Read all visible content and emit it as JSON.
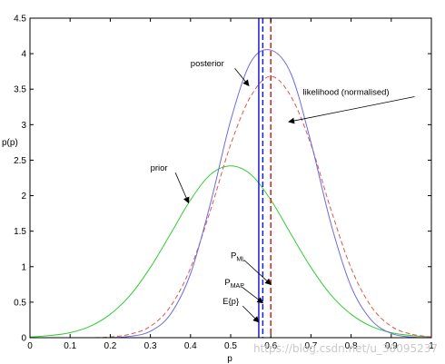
{
  "chart_data": {
    "type": "line",
    "title": "",
    "xlabel": "p",
    "ylabel": "p(p)",
    "xlim": [
      0,
      1
    ],
    "ylim": [
      0,
      4.5
    ],
    "x_ticks": [
      "0",
      "0.1",
      "0.2",
      "0.3",
      "0.4",
      "0.5",
      "0.6",
      "0.7",
      "0.8",
      "0.9",
      "1"
    ],
    "y_ticks": [
      "0",
      "0.5",
      "1",
      "1.5",
      "2",
      "2.5",
      "3",
      "3.5",
      "4",
      "4.5"
    ],
    "series": [
      {
        "name": "prior",
        "color": "#33cc33",
        "dash": "solid",
        "x": [
          0,
          0.05,
          0.1,
          0.15,
          0.2,
          0.25,
          0.3,
          0.35,
          0.4,
          0.45,
          0.5,
          0.55,
          0.6,
          0.65,
          0.7,
          0.75,
          0.8,
          0.85,
          0.9,
          0.95,
          1
        ],
        "y": [
          0.01,
          0.03,
          0.07,
          0.16,
          0.33,
          0.6,
          0.99,
          1.46,
          1.94,
          2.3,
          2.42,
          2.3,
          1.94,
          1.46,
          0.99,
          0.6,
          0.33,
          0.16,
          0.07,
          0.03,
          0.01
        ]
      },
      {
        "name": "likelihood (normalised)",
        "color": "#e0554f",
        "dash": "dashed",
        "x": [
          0,
          0.05,
          0.1,
          0.15,
          0.2,
          0.25,
          0.3,
          0.35,
          0.4,
          0.45,
          0.5,
          0.55,
          0.6,
          0.65,
          0.7,
          0.75,
          0.8,
          0.85,
          0.9,
          0.95,
          1
        ],
        "y": [
          0,
          0,
          0,
          0,
          0.01,
          0.05,
          0.16,
          0.44,
          0.98,
          1.8,
          2.72,
          3.4,
          3.68,
          3.4,
          2.72,
          1.8,
          0.98,
          0.44,
          0.16,
          0.05,
          0.01
        ]
      },
      {
        "name": "posterior",
        "color": "#6b6bdc",
        "dash": "solid",
        "x": [
          0,
          0.05,
          0.1,
          0.15,
          0.2,
          0.25,
          0.3,
          0.35,
          0.4,
          0.45,
          0.5,
          0.55,
          0.6,
          0.65,
          0.7,
          0.75,
          0.8,
          0.85,
          0.9,
          0.95,
          1
        ],
        "y": [
          0,
          0,
          0,
          0,
          0,
          0.02,
          0.09,
          0.33,
          0.9,
          1.9,
          3.06,
          3.88,
          4.05,
          3.72,
          2.75,
          1.6,
          0.72,
          0.25,
          0.06,
          0.01,
          0
        ]
      }
    ],
    "vertical_lines": [
      {
        "label": "E{p}",
        "x": 0.57,
        "color": "#1c1cd6",
        "dash": "solid"
      },
      {
        "label": "P_MAP",
        "x": 0.58,
        "color": "#1c1cd6",
        "dash": "dashed"
      },
      {
        "label": "P_ML",
        "x": 0.6,
        "color": "#d42020",
        "dash": "dashed"
      }
    ],
    "annotations": [
      {
        "text": "posterior",
        "x": 0.4,
        "y": 3.82,
        "arrow_to": [
          0.545,
          3.55
        ]
      },
      {
        "text": "likelihood (normalised)",
        "x": 0.68,
        "y": 3.42,
        "arrow_to": [
          0.645,
          3.04
        ]
      },
      {
        "text": "prior",
        "x": 0.3,
        "y": 2.35,
        "arrow_to": [
          0.395,
          1.9
        ]
      },
      {
        "text": "P",
        "sub": "ML",
        "x": 0.5,
        "y": 1.12,
        "arrow_to": [
          0.6,
          0.75
        ]
      },
      {
        "text": "P",
        "sub": "MAP",
        "x": 0.485,
        "y": 0.74,
        "arrow_to": [
          0.58,
          0.49
        ]
      },
      {
        "text": "E{p}",
        "x": 0.48,
        "y": 0.47,
        "arrow_to": [
          0.57,
          0.22
        ]
      }
    ],
    "grid": false
  },
  "watermark": "https://blog.csdn.net/u_30095237"
}
